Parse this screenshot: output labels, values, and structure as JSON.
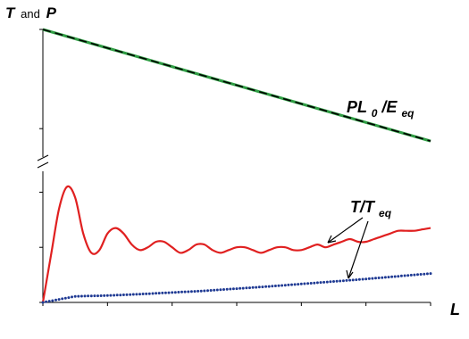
{
  "chart_data": {
    "type": "line",
    "y_axis_title": {
      "T": "T",
      "and": "and",
      "P": "P"
    },
    "x_axis_title": "L",
    "xlim": [
      1.0,
      1.12
    ],
    "x_ticks": [
      "1.00",
      "1.02",
      "1.04",
      "1.06",
      "1.08",
      "1.10",
      "1.12"
    ],
    "y_axis_break": true,
    "panels": [
      {
        "name": "upper",
        "ylim": [
          1.75,
          2.0
        ],
        "y_ticks": [
          "2.0",
          "1.8"
        ],
        "series": [
          {
            "name": "P L0 / Eeq",
            "label_parts": {
              "main": "PL",
              "sub1": "0",
              "slash": "/E",
              "sub2": "eq"
            },
            "style": "solid-green-with-black-dashed-overlay",
            "colors": [
              "#2f9e44",
              "#000000"
            ],
            "x": [
              1.0,
              1.12
            ],
            "y": [
              2.0,
              1.775
            ]
          }
        ]
      },
      {
        "name": "lower",
        "ylim": [
          1.0,
          1.45
        ],
        "y_ticks": [
          "1.4",
          "1.2",
          "1.0"
        ],
        "series": [
          {
            "name": "T / Teq",
            "label_parts": {
              "main": "T/T",
              "sub": "eq"
            },
            "style": "solid",
            "color": "#e02020",
            "x": [
              1.0,
              1.0025,
              1.005,
              1.0075,
              1.01,
              1.0125,
              1.015,
              1.0175,
              1.02,
              1.0225,
              1.025,
              1.0275,
              1.03,
              1.0325,
              1.035,
              1.0375,
              1.04,
              1.0425,
              1.045,
              1.0475,
              1.05,
              1.0525,
              1.055,
              1.0575,
              1.06,
              1.0625,
              1.065,
              1.0675,
              1.07,
              1.0725,
              1.075,
              1.0775,
              1.08,
              1.0825,
              1.085,
              1.0875,
              1.09,
              1.0925,
              1.095,
              1.0975,
              1.1,
              1.1025,
              1.105,
              1.1075,
              1.11,
              1.1125,
              1.115,
              1.1175,
              1.12
            ],
            "y": [
              1.0,
              1.17,
              1.34,
              1.42,
              1.38,
              1.25,
              1.18,
              1.19,
              1.25,
              1.27,
              1.25,
              1.21,
              1.19,
              1.2,
              1.22,
              1.22,
              1.2,
              1.18,
              1.19,
              1.21,
              1.21,
              1.19,
              1.18,
              1.19,
              1.2,
              1.2,
              1.19,
              1.18,
              1.19,
              1.2,
              1.2,
              1.19,
              1.19,
              1.2,
              1.21,
              1.2,
              1.21,
              1.22,
              1.23,
              1.22,
              1.22,
              1.23,
              1.24,
              1.25,
              1.26,
              1.26,
              1.26,
              1.265,
              1.27
            ]
          },
          {
            "name": "dotted",
            "style": "dotted",
            "color": "#1f3a93",
            "x": [
              1.0,
              1.01,
              1.02,
              1.03,
              1.04,
              1.05,
              1.06,
              1.07,
              1.08,
              1.09,
              1.1,
              1.11,
              1.12
            ],
            "y": [
              1.0,
              1.022,
              1.025,
              1.03,
              1.036,
              1.042,
              1.05,
              1.058,
              1.067,
              1.076,
              1.085,
              1.095,
              1.105
            ]
          }
        ]
      }
    ]
  }
}
